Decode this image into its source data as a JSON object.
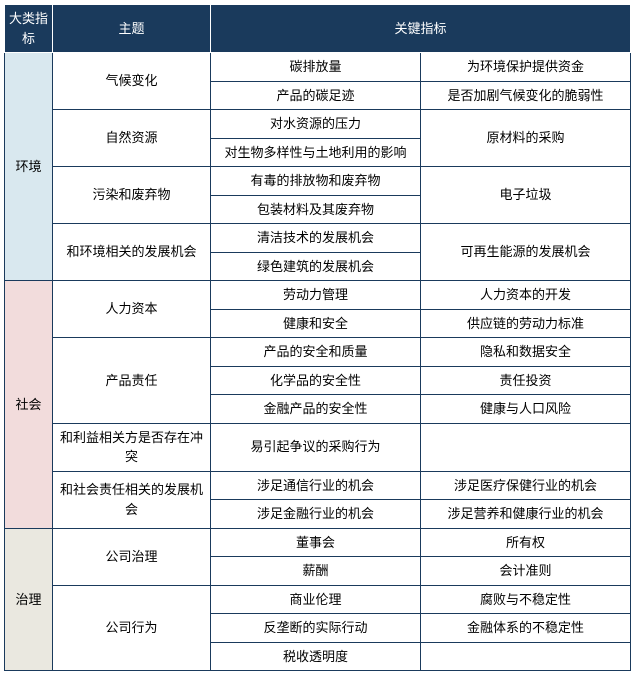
{
  "headers": {
    "category": "大类指标",
    "topic": "主题",
    "key": "关键指标"
  },
  "colors": {
    "header_bg": "#1a3a5c",
    "header_fg": "#ffffff",
    "env_bg": "#d9e8ef",
    "soc_bg": "#f2dcdc",
    "gov_bg": "#eae8e0",
    "border": "#1a3a5c"
  },
  "categories": {
    "env": "环境",
    "soc": "社会",
    "gov": "治理"
  },
  "topics": {
    "climate": "气候变化",
    "natres": "自然资源",
    "pollution": "污染和废弃物",
    "env_opp": "和环境相关的发展机会",
    "human_cap": "人力资本",
    "product_liab": "产品责任",
    "stake_conflict": "和利益相关方是否存在冲突",
    "soc_opp": "和社会责任相关的发展机会",
    "corp_gov": "公司治理",
    "corp_behav": "公司行为"
  },
  "k": {
    "carbon_emission": "碳排放量",
    "env_funding": "为环境保护提供资金",
    "product_footprint": "产品的碳足迹",
    "climate_fragility": "是否加剧气候变化的脆弱性",
    "water_pressure": "对水资源的压力",
    "raw_material": "原材料的采购",
    "biodiversity": "对生物多样性与土地利用的影响",
    "toxic_waste": "有毒的排放物和废弃物",
    "e_waste": "电子垃圾",
    "packaging_waste": "包装材料及其废弃物",
    "cleantech": "清洁技术的发展机会",
    "renewable": "可再生能源的发展机会",
    "green_building": "绿色建筑的发展机会",
    "labor_mgmt": "劳动力管理",
    "human_cap_dev": "人力资本的开发",
    "health_safety": "健康和安全",
    "supply_labor": "供应链的劳动力标准",
    "product_safety": "产品的安全和质量",
    "privacy": "隐私和数据安全",
    "chemical_safety": "化学品的安全性",
    "resp_invest": "责任投资",
    "fin_product_safety": "金融产品的安全性",
    "health_pop_risk": "健康与人口风险",
    "controversial_sourcing": "易引起争议的采购行为",
    "telecom_opp": "涉足通信行业的机会",
    "healthcare_opp": "涉足医疗保健行业的机会",
    "finance_opp": "涉足金融行业的机会",
    "nutrition_opp": "涉足营养和健康行业的机会",
    "board": "董事会",
    "ownership": "所有权",
    "compensation": "薪酬",
    "accounting": "会计准则",
    "business_ethics": "商业伦理",
    "corruption": "腐败与不稳定性",
    "antitrust": "反垄断的实际行动",
    "fin_instability": "金融体系的不稳定性",
    "tax_transparency": "税收透明度"
  }
}
